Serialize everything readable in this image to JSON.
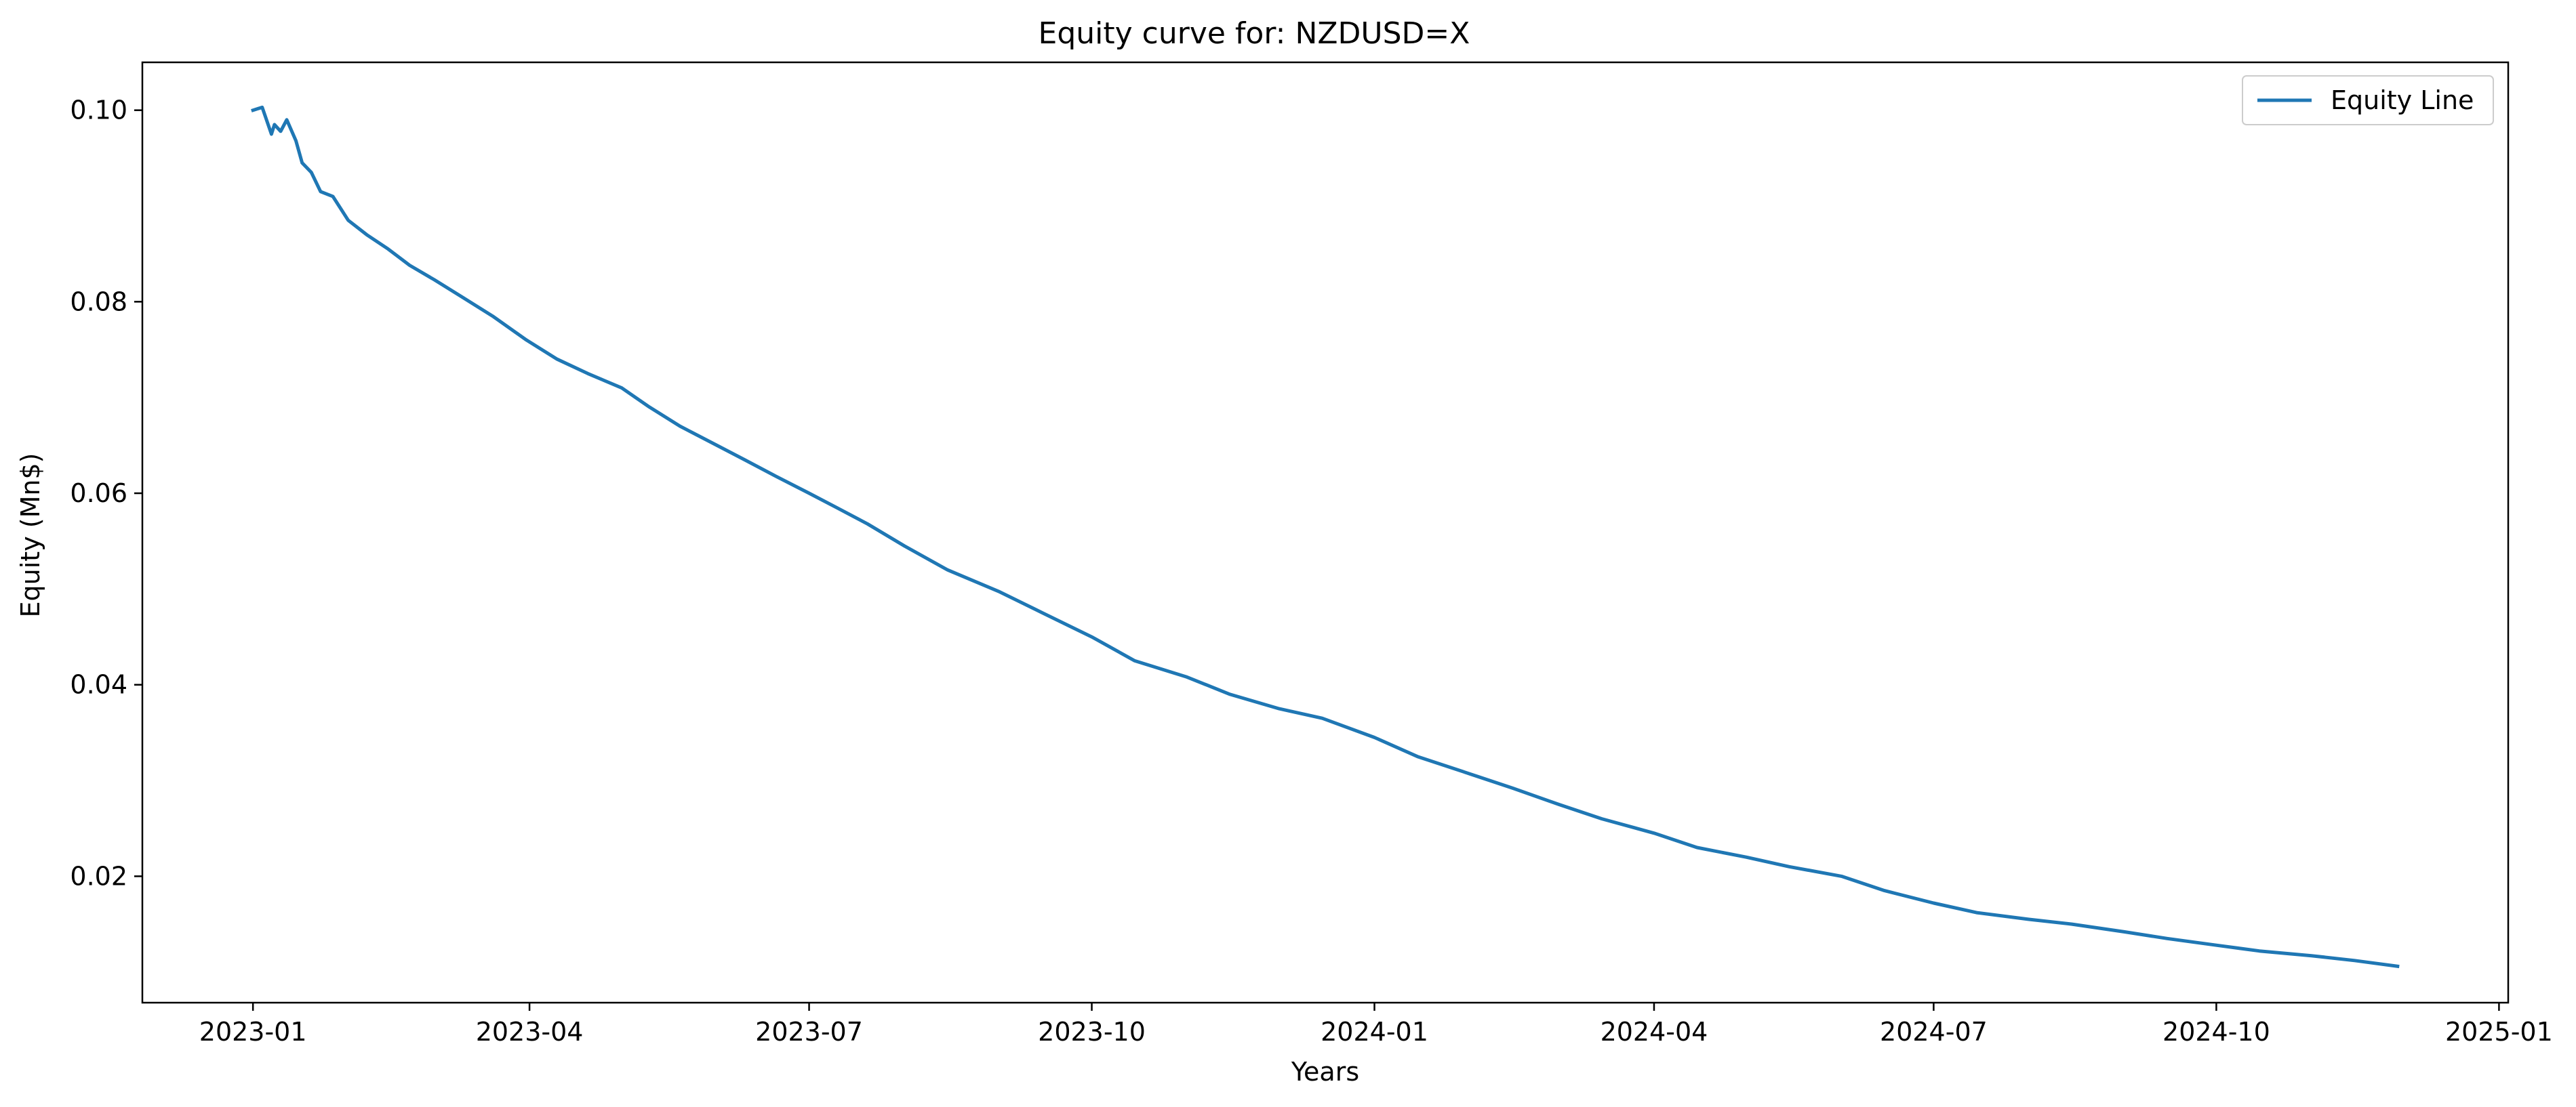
{
  "chart_data": {
    "type": "line",
    "title": "Equity curve for: NZDUSD=X",
    "xlabel": "Years",
    "ylabel": "Equity (Mn$)",
    "xlim": [
      "2022-11-26",
      "2025-01-04"
    ],
    "ylim": [
      0.0068,
      0.105
    ],
    "x_ticks": [
      "2023-01",
      "2023-04",
      "2023-07",
      "2023-10",
      "2024-01",
      "2024-04",
      "2024-07",
      "2024-10",
      "2025-01"
    ],
    "y_ticks": [
      "0.02",
      "0.04",
      "0.06",
      "0.08",
      "0.10"
    ],
    "y_tick_values": [
      0.02,
      0.04,
      0.06,
      0.08,
      0.1
    ],
    "legend": {
      "position": "top-right",
      "entries": [
        "Equity Line"
      ]
    },
    "grid": false,
    "series": [
      {
        "name": "Equity Line",
        "color": "#1f77b4",
        "x": [
          "2023-01-01",
          "2023-01-04",
          "2023-01-07",
          "2023-01-08",
          "2023-01-10",
          "2023-01-12",
          "2023-01-15",
          "2023-01-17",
          "2023-01-20",
          "2023-01-23",
          "2023-01-27",
          "2023-02-01",
          "2023-02-07",
          "2023-02-14",
          "2023-02-21",
          "2023-03-01",
          "2023-03-10",
          "2023-03-20",
          "2023-03-31",
          "2023-04-10",
          "2023-04-20",
          "2023-05-01",
          "2023-05-10",
          "2023-05-20",
          "2023-06-01",
          "2023-06-10",
          "2023-06-20",
          "2023-07-01",
          "2023-07-10",
          "2023-07-20",
          "2023-08-01",
          "2023-08-15",
          "2023-09-01",
          "2023-09-15",
          "2023-10-01",
          "2023-10-15",
          "2023-11-01",
          "2023-11-15",
          "2023-12-01",
          "2023-12-15",
          "2024-01-01",
          "2024-01-15",
          "2024-02-01",
          "2024-02-15",
          "2024-03-01",
          "2024-03-15",
          "2024-04-01",
          "2024-04-15",
          "2024-05-01",
          "2024-05-15",
          "2024-06-01",
          "2024-06-15",
          "2024-07-01",
          "2024-07-15",
          "2024-08-01",
          "2024-08-15",
          "2024-09-01",
          "2024-09-15",
          "2024-10-01",
          "2024-10-15",
          "2024-11-01",
          "2024-11-15",
          "2024-11-29"
        ],
        "y": [
          0.1,
          0.1003,
          0.0975,
          0.0985,
          0.0978,
          0.099,
          0.0968,
          0.0945,
          0.0935,
          0.0915,
          0.091,
          0.0885,
          0.087,
          0.0855,
          0.0838,
          0.0823,
          0.0805,
          0.0785,
          0.076,
          0.074,
          0.0725,
          0.071,
          0.069,
          0.067,
          0.065,
          0.0635,
          0.0618,
          0.06,
          0.0585,
          0.0568,
          0.0545,
          0.052,
          0.0497,
          0.0475,
          0.045,
          0.0425,
          0.0408,
          0.039,
          0.0375,
          0.0365,
          0.0345,
          0.0325,
          0.0307,
          0.0292,
          0.0275,
          0.026,
          0.0245,
          0.023,
          0.022,
          0.021,
          0.02,
          0.0185,
          0.0172,
          0.0162,
          0.0155,
          0.015,
          0.0142,
          0.0135,
          0.0128,
          0.0122,
          0.0117,
          0.0112,
          0.0106
        ]
      }
    ]
  }
}
